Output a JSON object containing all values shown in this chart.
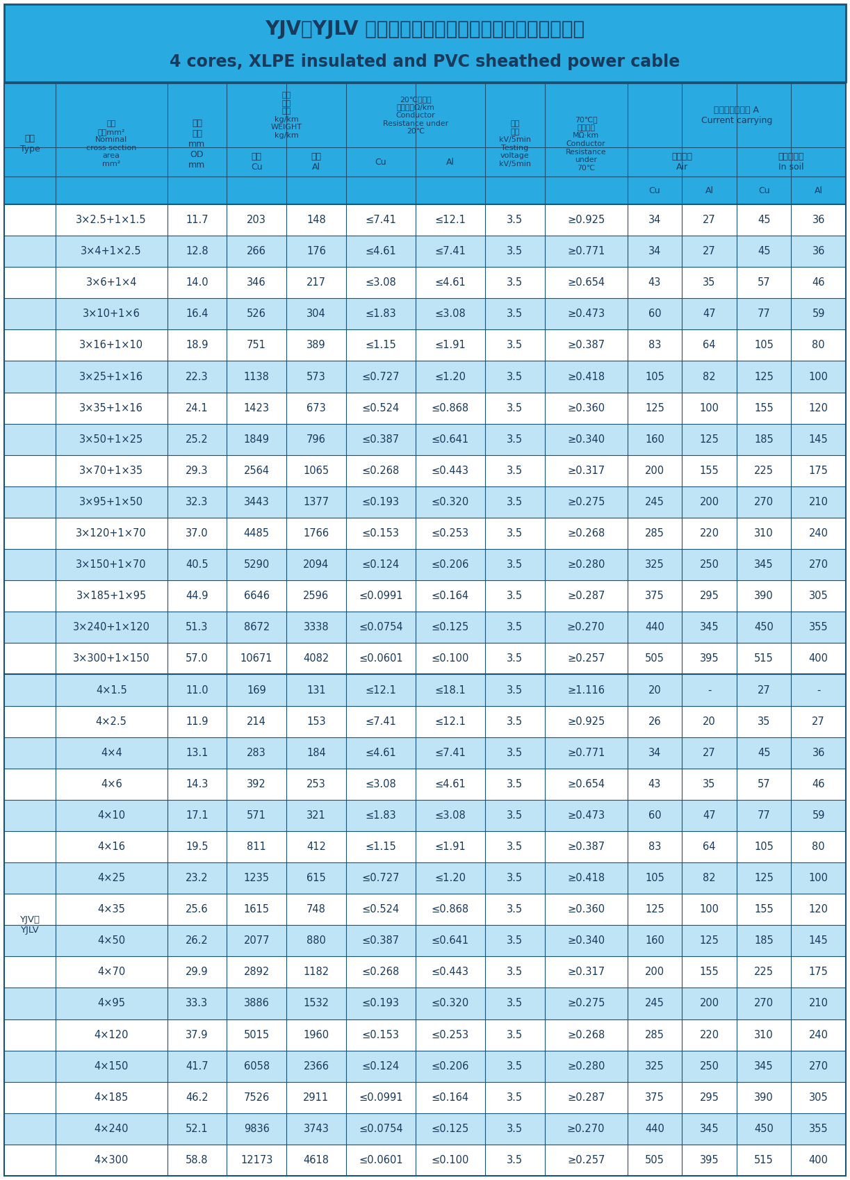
{
  "title_cn": "YJV、YJLV 四芯交联聚乙烯绝缘聚氯乙烯护套电力电缆",
  "title_en": "4 cores, XLPE insulated and PVC sheathed power cable",
  "title_bg": "#29ABE2",
  "header_bg": "#29ABE2",
  "row_bg_odd": "#FFFFFF",
  "row_bg_even": "#C8E6F5",
  "border_color": "#1A5276",
  "text_color_header": "#1A3A5C",
  "text_color_data": "#1A3A5C",
  "rows": [
    [
      "3×2.5+1×1.5",
      "11.7",
      "203",
      "148",
      "≤7.41",
      "≤12.1",
      "3.5",
      "≥0.925",
      "34",
      "27",
      "45",
      "36"
    ],
    [
      "3×4+1×2.5",
      "12.8",
      "266",
      "176",
      "≤4.61",
      "≤7.41",
      "3.5",
      "≥0.771",
      "34",
      "27",
      "45",
      "36"
    ],
    [
      "3×6+1×4",
      "14.0",
      "346",
      "217",
      "≤3.08",
      "≤4.61",
      "3.5",
      "≥0.654",
      "43",
      "35",
      "57",
      "46"
    ],
    [
      "3×10+1×6",
      "16.4",
      "526",
      "304",
      "≤1.83",
      "≤3.08",
      "3.5",
      "≥0.473",
      "60",
      "47",
      "77",
      "59"
    ],
    [
      "3×16+1×10",
      "18.9",
      "751",
      "389",
      "≤1.15",
      "≤1.91",
      "3.5",
      "≥0.387",
      "83",
      "64",
      "105",
      "80"
    ],
    [
      "3×25+1×16",
      "22.3",
      "1138",
      "573",
      "≤0.727",
      "≤1.20",
      "3.5",
      "≥0.418",
      "105",
      "82",
      "125",
      "100"
    ],
    [
      "3×35+1×16",
      "24.1",
      "1423",
      "673",
      "≤0.524",
      "≤0.868",
      "3.5",
      "≥0.360",
      "125",
      "100",
      "155",
      "120"
    ],
    [
      "3×50+1×25",
      "25.2",
      "1849",
      "796",
      "≤0.387",
      "≤0.641",
      "3.5",
      "≥0.340",
      "160",
      "125",
      "185",
      "145"
    ],
    [
      "3×70+1×35",
      "29.3",
      "2564",
      "1065",
      "≤0.268",
      "≤0.443",
      "3.5",
      "≥0.317",
      "200",
      "155",
      "225",
      "175"
    ],
    [
      "3×95+1×50",
      "32.3",
      "3443",
      "1377",
      "≤0.193",
      "≤0.320",
      "3.5",
      "≥0.275",
      "245",
      "200",
      "270",
      "210"
    ],
    [
      "3×120+1×70",
      "37.0",
      "4485",
      "1766",
      "≤0.153",
      "≤0.253",
      "3.5",
      "≥0.268",
      "285",
      "220",
      "310",
      "240"
    ],
    [
      "3×150+1×70",
      "40.5",
      "5290",
      "2094",
      "≤0.124",
      "≤0.206",
      "3.5",
      "≥0.280",
      "325",
      "250",
      "345",
      "270"
    ],
    [
      "3×185+1×95",
      "44.9",
      "6646",
      "2596",
      "≤0.0991",
      "≤0.164",
      "3.5",
      "≥0.287",
      "375",
      "295",
      "390",
      "305"
    ],
    [
      "3×240+1×120",
      "51.3",
      "8672",
      "3338",
      "≤0.0754",
      "≤0.125",
      "3.5",
      "≥0.270",
      "440",
      "345",
      "450",
      "355"
    ],
    [
      "3×300+1×150",
      "57.0",
      "10671",
      "4082",
      "≤0.0601",
      "≤0.100",
      "3.5",
      "≥0.257",
      "505",
      "395",
      "515",
      "400"
    ],
    [
      "4×1.5",
      "11.0",
      "169",
      "131",
      "≤12.1",
      "≤18.1",
      "3.5",
      "≥1.116",
      "20",
      "-",
      "27",
      "-"
    ],
    [
      "4×2.5",
      "11.9",
      "214",
      "153",
      "≤7.41",
      "≤12.1",
      "3.5",
      "≥0.925",
      "26",
      "20",
      "35",
      "27"
    ],
    [
      "4×4",
      "13.1",
      "283",
      "184",
      "≤4.61",
      "≤7.41",
      "3.5",
      "≥0.771",
      "34",
      "27",
      "45",
      "36"
    ],
    [
      "4×6",
      "14.3",
      "392",
      "253",
      "≤3.08",
      "≤4.61",
      "3.5",
      "≥0.654",
      "43",
      "35",
      "57",
      "46"
    ],
    [
      "4×10",
      "17.1",
      "571",
      "321",
      "≤1.83",
      "≤3.08",
      "3.5",
      "≥0.473",
      "60",
      "47",
      "77",
      "59"
    ],
    [
      "4×16",
      "19.5",
      "811",
      "412",
      "≤1.15",
      "≤1.91",
      "3.5",
      "≥0.387",
      "83",
      "64",
      "105",
      "80"
    ],
    [
      "4×25",
      "23.2",
      "1235",
      "615",
      "≤0.727",
      "≤1.20",
      "3.5",
      "≥0.418",
      "105",
      "82",
      "125",
      "100"
    ],
    [
      "4×35",
      "25.6",
      "1615",
      "748",
      "≤0.524",
      "≤0.868",
      "3.5",
      "≥0.360",
      "125",
      "100",
      "155",
      "120"
    ],
    [
      "4×50",
      "26.2",
      "2077",
      "880",
      "≤0.387",
      "≤0.641",
      "3.5",
      "≥0.340",
      "160",
      "125",
      "185",
      "145"
    ],
    [
      "4×70",
      "29.9",
      "2892",
      "1182",
      "≤0.268",
      "≤0.443",
      "3.5",
      "≥0.317",
      "200",
      "155",
      "225",
      "175"
    ],
    [
      "4×95",
      "33.3",
      "3886",
      "1532",
      "≤0.193",
      "≤0.320",
      "3.5",
      "≥0.275",
      "245",
      "200",
      "270",
      "210"
    ],
    [
      "4×120",
      "37.9",
      "5015",
      "1960",
      "≤0.153",
      "≤0.253",
      "3.5",
      "≥0.268",
      "285",
      "220",
      "310",
      "240"
    ],
    [
      "4×150",
      "41.7",
      "6058",
      "2366",
      "≤0.124",
      "≤0.206",
      "3.5",
      "≥0.280",
      "325",
      "250",
      "345",
      "270"
    ],
    [
      "4×185",
      "46.2",
      "7526",
      "2911",
      "≤0.0991",
      "≤0.164",
      "3.5",
      "≥0.287",
      "375",
      "295",
      "390",
      "305"
    ],
    [
      "4×240",
      "52.1",
      "9836",
      "3743",
      "≤0.0754",
      "≤0.125",
      "3.5",
      "≥0.270",
      "440",
      "345",
      "450",
      "355"
    ],
    [
      "4×300",
      "58.8",
      "12173",
      "4618",
      "≤0.0601",
      "≤0.100",
      "3.5",
      "≥0.257",
      "505",
      "395",
      "515",
      "400"
    ]
  ]
}
